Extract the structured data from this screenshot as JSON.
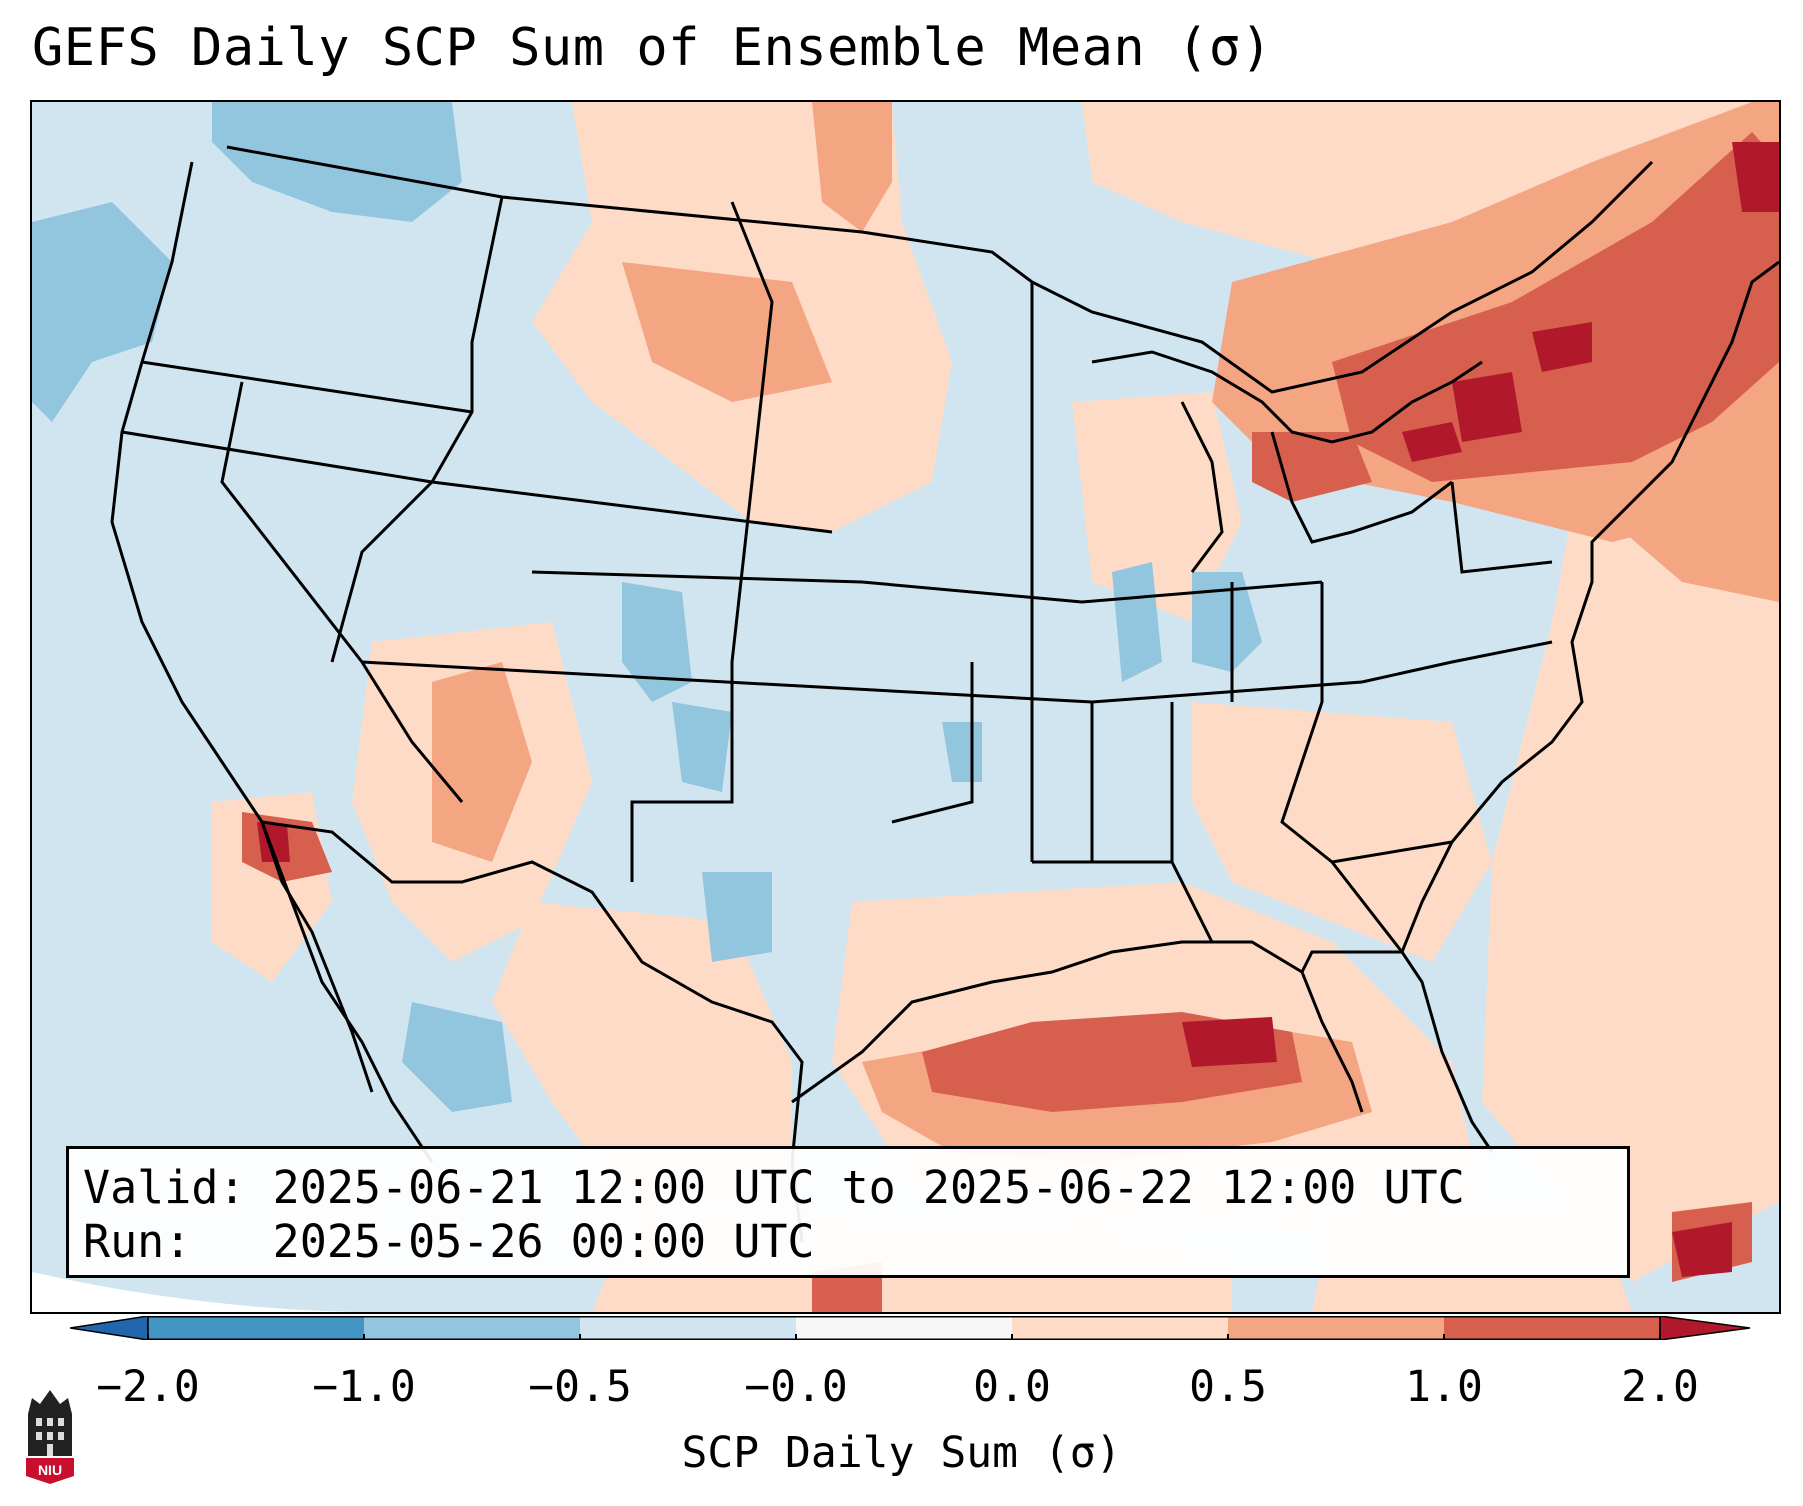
{
  "title": "GEFS Daily SCP Sum of Ensemble Mean (σ)",
  "info": {
    "valid_label": "Valid:",
    "valid_value": "2025-06-21 12:00 UTC to 2025-06-22 12:00 UTC",
    "run_label": "Run:  ",
    "run_value": "2025-05-26 00:00 UTC"
  },
  "colorbar": {
    "label": "SCP Daily Sum (σ)",
    "ticks": [
      "−2.0",
      "−1.0",
      "−0.5",
      "−0.0",
      "0.0",
      "0.5",
      "1.0",
      "2.0"
    ],
    "bins": [
      {
        "range": "< -2.0",
        "color": "#2166ac"
      },
      {
        "range": "-2.0 to -1.0",
        "color": "#4393c3"
      },
      {
        "range": "-1.0 to -0.5",
        "color": "#92c5de"
      },
      {
        "range": "-0.5 to -0.0",
        "color": "#d1e5f0"
      },
      {
        "range": "-0.0 to 0.0",
        "color": "#f7f7f7"
      },
      {
        "range": "0.0 to 0.5",
        "color": "#fddbc7"
      },
      {
        "range": "0.5 to 1.0",
        "color": "#f4a582"
      },
      {
        "range": "1.0 to 2.0",
        "color": "#d6604d"
      },
      {
        "range": "> 2.0",
        "color": "#b2182b"
      }
    ]
  },
  "logo": {
    "text": "NIU",
    "color": "#c8102e"
  },
  "map": {
    "background_color": "#d1e5f0",
    "outline_color": "#000000"
  }
}
